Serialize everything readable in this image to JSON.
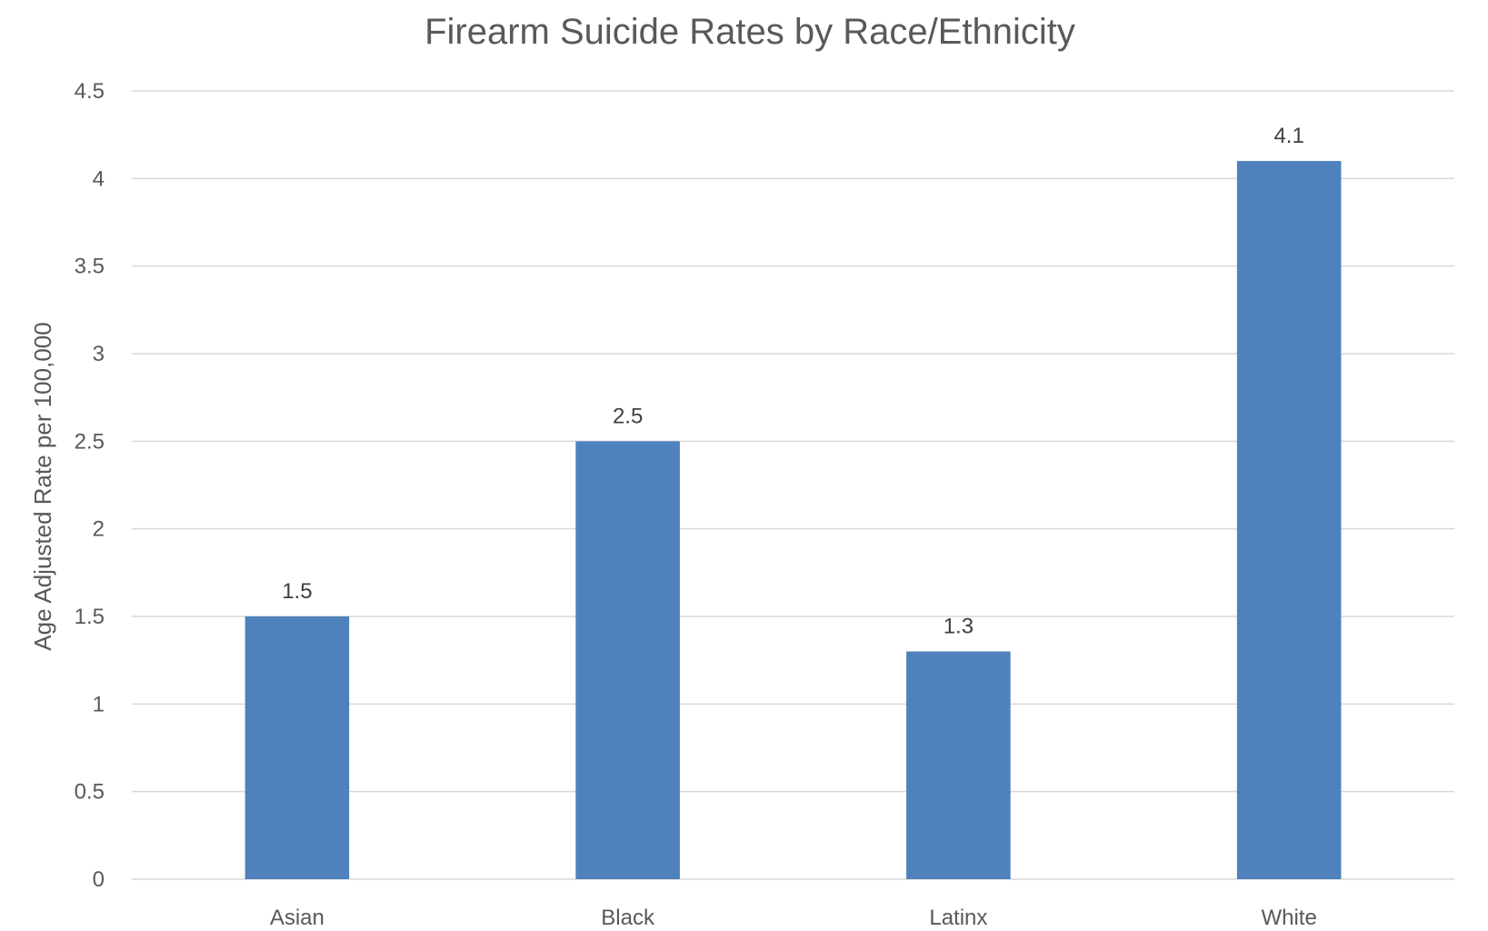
{
  "chart_data": {
    "type": "bar",
    "title": "Firearm Suicide Rates by Race/Ethnicity",
    "xlabel": "",
    "ylabel": "Age Adjusted Rate per 100,000",
    "categories": [
      "Asian",
      "Black",
      "Latinx",
      "White"
    ],
    "values": [
      1.5,
      2.5,
      1.3,
      4.1
    ],
    "data_labels": [
      "1.5",
      "2.5",
      "1.3",
      "4.1"
    ],
    "ylim": [
      0,
      4.5
    ],
    "yticks": [
      0,
      0.5,
      1,
      1.5,
      2,
      2.5,
      3,
      3.5,
      4,
      4.5
    ],
    "ytick_labels": [
      "0",
      "0.5",
      "1",
      "1.5",
      "2",
      "2.5",
      "3",
      "3.5",
      "4",
      "4.5"
    ],
    "grid": true,
    "legend": "none",
    "bar_color": "#4f81bd"
  }
}
